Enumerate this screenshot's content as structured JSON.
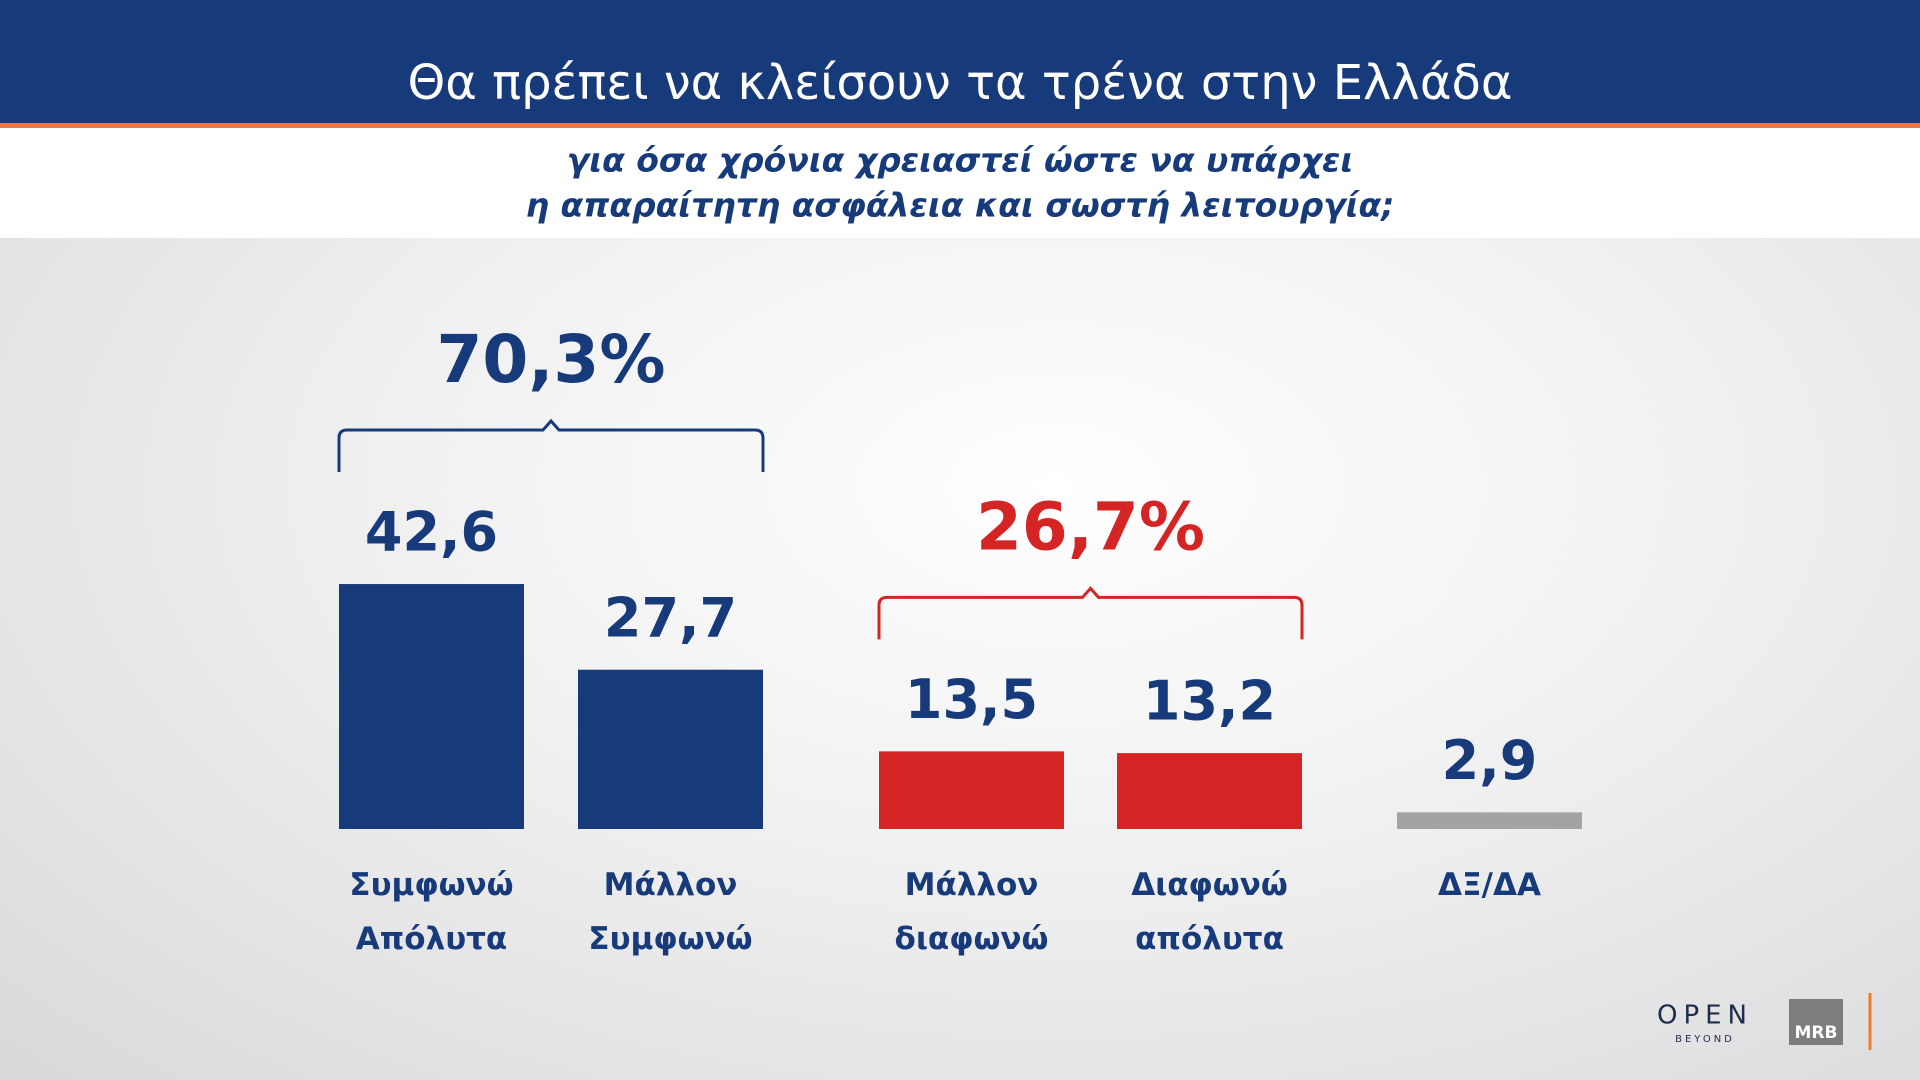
{
  "chart_data": {
    "type": "bar",
    "title": "Θα πρέπει να κλείσουν τα τρένα στην Ελλάδα",
    "subtitle": [
      "για όσα χρόνια χρειαστεί ώστε να υπάρχει",
      "η απαραίτητη ασφάλεια και σωστή λειτουργία;"
    ],
    "categories": [
      "Συμφωνώ\nΑπόλυτα",
      "Μάλλον\nΣυμφωνώ",
      "Μάλλον\nδιαφωνώ",
      "Διαφωνώ\nαπόλυτα",
      "ΔΞ/ΔΑ"
    ],
    "values": [
      42.6,
      27.7,
      13.5,
      13.2,
      2.9
    ],
    "value_labels": [
      "42,6",
      "27,7",
      "13,5",
      "13,2",
      "2,9"
    ],
    "colors": [
      "#173a7a",
      "#173a7a",
      "#d42424",
      "#d42424",
      "#a3a3a3"
    ],
    "groups": [
      {
        "value": 70.3,
        "label": "70,3%",
        "color": "#173a7a"
      },
      {
        "value": 26.7,
        "label": "26,7%",
        "color": "#d42424"
      }
    ]
  },
  "branding": {
    "open": "OPEN",
    "beyond": "BEYOND",
    "mrb": "MRB"
  }
}
